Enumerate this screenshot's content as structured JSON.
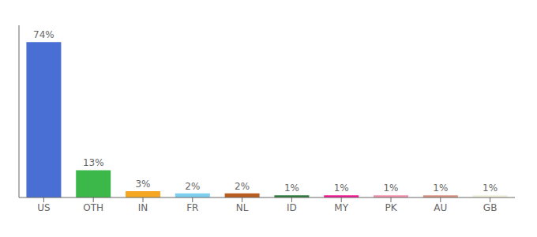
{
  "chart_data": {
    "type": "bar",
    "categories": [
      "US",
      "OTH",
      "IN",
      "FR",
      "NL",
      "ID",
      "MY",
      "PK",
      "AU",
      "GB"
    ],
    "values": [
      74,
      13,
      3,
      2,
      2,
      1,
      1,
      1,
      1,
      1
    ],
    "value_labels": [
      "74%",
      "13%",
      "3%",
      "2%",
      "2%",
      "1%",
      "1%",
      "1%",
      "1%",
      "1%"
    ],
    "data_labels": true,
    "colors": [
      "#4a6fd4",
      "#3cb84a",
      "#f5a623",
      "#7ecfef",
      "#b85c20",
      "#2d7a3a",
      "#f01890",
      "#f090a8",
      "#d89080",
      "#f0f0d8"
    ],
    "ylim": [
      0,
      82
    ],
    "tick_labels": "x",
    "grid": false
  }
}
